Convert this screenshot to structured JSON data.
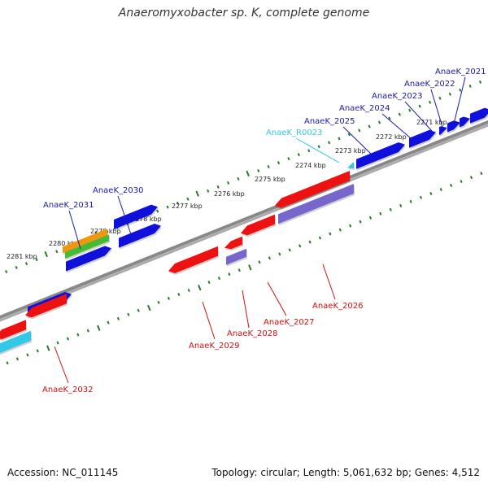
{
  "title": "Anaeromyxobacter sp. K, complete genome",
  "footer": {
    "accession": "Accession: NC_011145",
    "topology": "Topology: circular; Length: 5,061,632 bp; Genes: 4,512"
  },
  "colors": {
    "forward_gene": "#1010dd",
    "reverse_gene": "#ee1111",
    "reverse_gene_light": "#7766cc",
    "rna_gene": "#33c8e8",
    "orange_feature": "#f0960f",
    "green_feature": "#44bb33",
    "forward_label": "#1a1aaa",
    "reverse_label": "#cc1111",
    "rna_label": "#33c8e8",
    "backbone": "#888888",
    "scale_ticks": "#2a7a2a"
  },
  "scale_ticks": [
    {
      "label": "2271 kbp"
    },
    {
      "label": "2272 kbp"
    },
    {
      "label": "2273 kbp"
    },
    {
      "label": "2274 kbp"
    },
    {
      "label": "2275 kbp"
    },
    {
      "label": "2276 kbp"
    },
    {
      "label": "2277 kbp"
    },
    {
      "label": "2278 kbp"
    },
    {
      "label": "2279 kbp"
    },
    {
      "label": "2280 kbp"
    },
    {
      "label": "2281 kbp"
    }
  ],
  "gene_labels": [
    {
      "label": "AnaeK_2021",
      "type": "forward"
    },
    {
      "label": "AnaeK_2022",
      "type": "forward"
    },
    {
      "label": "AnaeK_2023",
      "type": "forward"
    },
    {
      "label": "AnaeK_2024",
      "type": "forward"
    },
    {
      "label": "AnaeK_2025",
      "type": "forward"
    },
    {
      "label": "AnaeK_R0023",
      "type": "rna"
    },
    {
      "label": "AnaeK_2030",
      "type": "forward"
    },
    {
      "label": "AnaeK_2031",
      "type": "forward"
    },
    {
      "label": "AnaeK_2026",
      "type": "reverse"
    },
    {
      "label": "AnaeK_2027",
      "type": "reverse"
    },
    {
      "label": "AnaeK_2028",
      "type": "reverse"
    },
    {
      "label": "AnaeK_2029",
      "type": "reverse"
    },
    {
      "label": "AnaeK_2032",
      "type": "reverse"
    }
  ]
}
